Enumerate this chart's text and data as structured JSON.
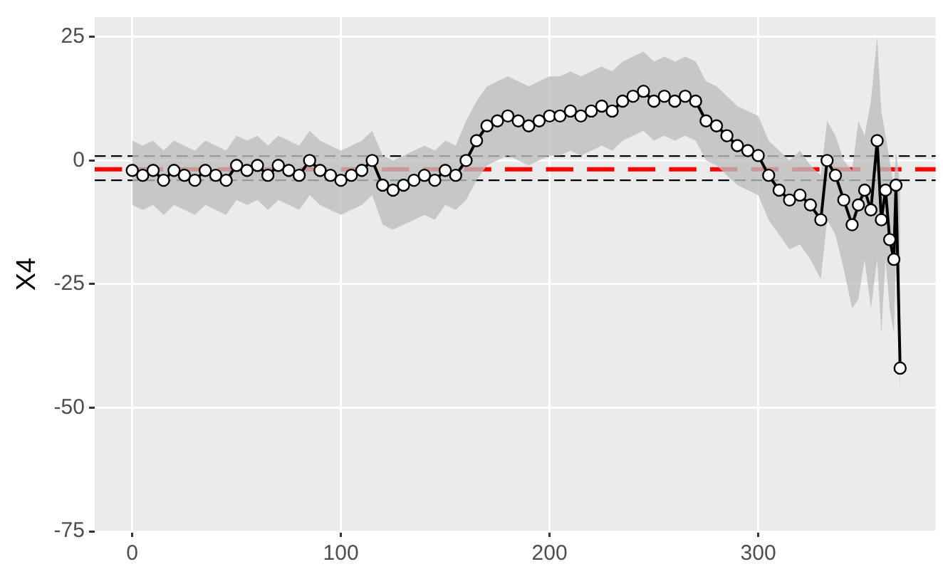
{
  "chart_data": {
    "type": "line",
    "ylabel": "X4",
    "x": [
      0,
      5,
      10,
      15,
      20,
      25,
      30,
      35,
      40,
      45,
      50,
      55,
      60,
      65,
      70,
      75,
      80,
      85,
      90,
      95,
      100,
      105,
      110,
      115,
      120,
      125,
      130,
      135,
      140,
      145,
      150,
      155,
      160,
      165,
      170,
      175,
      180,
      185,
      190,
      195,
      200,
      205,
      210,
      215,
      220,
      225,
      230,
      235,
      240,
      245,
      250,
      255,
      260,
      265,
      270,
      275,
      280,
      285,
      290,
      295,
      300,
      305,
      310,
      315,
      320,
      325,
      330,
      333,
      337,
      341,
      345,
      348,
      351,
      354,
      357,
      359,
      361,
      363,
      365,
      366,
      368
    ],
    "series": [
      {
        "color": "#000000",
        "values": [
          -2,
          -3,
          -2,
          -4,
          -2,
          -3,
          -4,
          -2,
          -3,
          -4,
          -1,
          -2,
          -1,
          -3,
          -1,
          -2,
          -3,
          0,
          -2,
          -3,
          -4,
          -3,
          -2,
          0,
          -5,
          -6,
          -5,
          -4,
          -3,
          -4,
          -2,
          -3,
          0,
          4,
          7,
          8,
          9,
          8,
          7,
          8,
          9,
          9,
          10,
          9,
          10,
          11,
          10,
          12,
          13,
          14,
          12,
          13,
          12,
          13,
          12,
          8,
          7,
          5,
          3,
          2,
          1,
          -3,
          -6,
          -8,
          -7,
          -9,
          -12,
          0,
          -3,
          -8,
          -13,
          -9,
          -6,
          -10,
          4,
          -12,
          -6,
          -16,
          -20,
          -5,
          -42
        ],
        "lower": [
          -9,
          -10,
          -9,
          -11,
          -9,
          -10,
          -11,
          -9,
          -10,
          -11,
          -8,
          -9,
          -8,
          -10,
          -8,
          -9,
          -10,
          -7,
          -9,
          -10,
          -11,
          -10,
          -9,
          -7,
          -13,
          -14,
          -13,
          -12,
          -11,
          -12,
          -9,
          -10,
          -8,
          -4,
          -1,
          0,
          1,
          0,
          -1,
          0,
          1,
          1,
          2,
          1,
          2,
          3,
          2,
          4,
          5,
          6,
          4,
          5,
          4,
          5,
          4,
          0,
          -1,
          -3,
          -5,
          -6,
          -7,
          -12,
          -15,
          -18,
          -17,
          -20,
          -24,
          -12,
          -15,
          -22,
          -30,
          -28,
          -20,
          -30,
          -20,
          -35,
          -20,
          -30,
          -35,
          -20,
          -47
        ],
        "upper": [
          4,
          3,
          4,
          2,
          4,
          3,
          2,
          4,
          3,
          2,
          5,
          4,
          5,
          3,
          5,
          4,
          3,
          6,
          4,
          3,
          2,
          3,
          4,
          6,
          1,
          0,
          1,
          2,
          3,
          2,
          4,
          3,
          8,
          12,
          15,
          16,
          17,
          16,
          15,
          16,
          17,
          17,
          18,
          17,
          18,
          19,
          18,
          20,
          21,
          22,
          20,
          21,
          20,
          21,
          20,
          16,
          15,
          13,
          11,
          10,
          9,
          4,
          2,
          0,
          2,
          -1,
          -3,
          8,
          5,
          0,
          -2,
          8,
          5,
          12,
          25,
          10,
          5,
          0,
          -5,
          2,
          -5
        ]
      }
    ],
    "marker": "circle",
    "xlim": [
      -18,
      385
    ],
    "ylim": [
      -75,
      29
    ],
    "xticks": [
      0,
      100,
      200,
      300
    ],
    "yticks": [
      -75,
      -50,
      -25,
      0,
      25
    ],
    "grid": true,
    "legend": false,
    "ref_lines": [
      {
        "axis": "y",
        "value": -1.8,
        "color": "#ff0000",
        "line_style": "dashed"
      },
      {
        "axis": "y",
        "value": 0.9,
        "color": "#000000",
        "line_style": "dashed"
      },
      {
        "axis": "y",
        "value": -4,
        "color": "#000000",
        "line_style": "dashed"
      }
    ]
  }
}
